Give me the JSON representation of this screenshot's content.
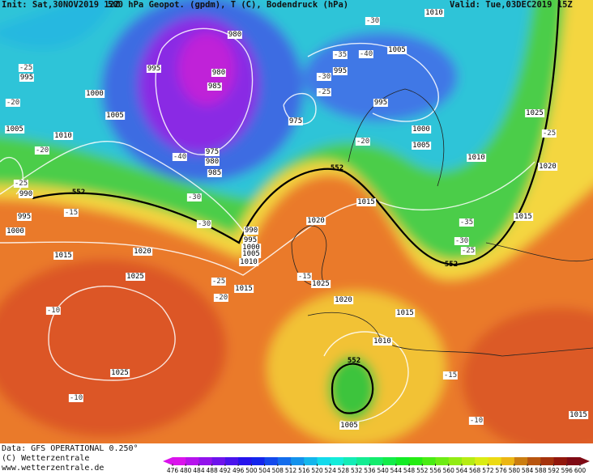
{
  "header": {
    "init": "Init: Sat,30NOV2019 12Z",
    "title": "500 hPa Geopot. (gpdm), T (C), Bodendruck (hPa)",
    "valid": "Valid: Tue,03DEC2019 15Z"
  },
  "footer": {
    "data": "Data: GFS OPERATIONAL 0.250°",
    "copyright": "(C) Wetterzentrale",
    "url": "www.wetterzentrale.de"
  },
  "colorbar": {
    "ticks": [
      476,
      480,
      484,
      488,
      492,
      496,
      500,
      504,
      508,
      512,
      516,
      520,
      524,
      528,
      532,
      536,
      540,
      544,
      548,
      552,
      556,
      560,
      564,
      568,
      572,
      576,
      580,
      584,
      588,
      592,
      596,
      600
    ]
  },
  "labels": {
    "pressure": [
      "980",
      "995",
      "985",
      "980",
      "975",
      "975",
      "980",
      "985",
      "995",
      "1005",
      "995",
      "1000",
      "1005",
      "1010",
      "1025",
      "1020",
      "1015",
      "1015",
      "1020",
      "1005",
      "1000",
      "995",
      "1005",
      "1010",
      "990",
      "995",
      "1000",
      "1015",
      "1020",
      "1025",
      "1025",
      "990",
      "995",
      "1000",
      "1005",
      "1010",
      "1015",
      "1025",
      "1020",
      "1015",
      "1010",
      "1005",
      "1015",
      "1010"
    ],
    "temperature": [
      "-20",
      "-25",
      "-20",
      "-25",
      "-15",
      "-30",
      "-30",
      "-25",
      "-20",
      "-10",
      "-10",
      "-40",
      "-35",
      "-40",
      "-30",
      "-30",
      "-25",
      "-20",
      "-35",
      "-30",
      "-25",
      "-25",
      "-15",
      "-15",
      "-10"
    ],
    "isohypse": [
      "552",
      "552",
      "552",
      "552"
    ]
  }
}
